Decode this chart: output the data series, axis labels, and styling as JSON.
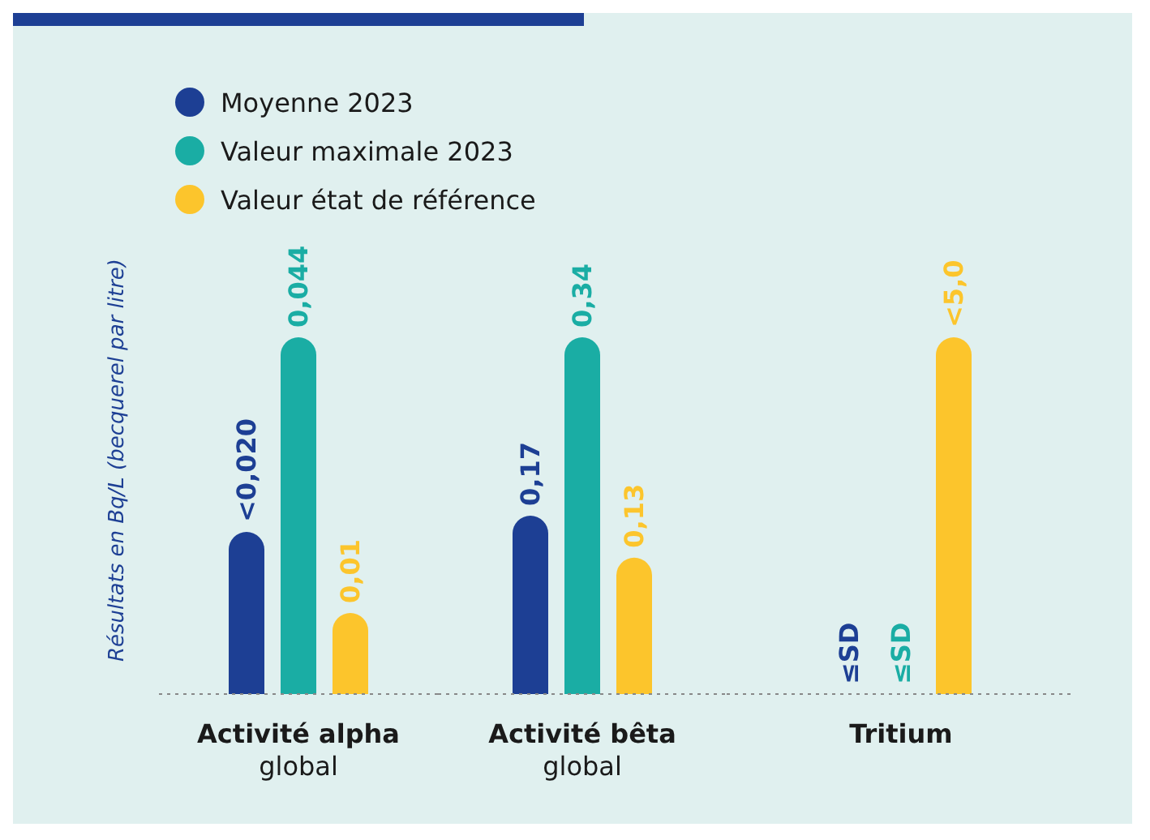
{
  "chart_data": [
    {
      "type": "bar",
      "ylabel": "Résultats en Bq/L (becquerel par litre)",
      "categories": [
        "Activité alpha\nglobal"
      ],
      "legend": "top",
      "tick_labels": "x",
      "data_labels": true,
      "series": [
        {
          "name": "Moyenne 2023",
          "color": "#1d3f94",
          "values": [
            0.02
          ],
          "value_labels": [
            "<0,020"
          ]
        },
        {
          "name": "Valeur maximale 2023",
          "color": "#1aada4",
          "values": [
            0.044
          ],
          "value_labels": [
            "0,044"
          ]
        },
        {
          "name": "Valeur état de référence",
          "color": "#fcc52c",
          "values": [
            0.01
          ],
          "value_labels": [
            "0,01"
          ]
        }
      ]
    },
    {
      "type": "bar",
      "categories": [
        "Activité bêta\nglobal"
      ],
      "tick_labels": "x",
      "data_labels": true,
      "series": [
        {
          "color": "#1d3f94",
          "values": [
            0.17
          ],
          "value_labels": [
            "0,17"
          ]
        },
        {
          "color": "#1aada4",
          "values": [
            0.34
          ],
          "value_labels": [
            "0,34"
          ]
        },
        {
          "color": "#fcc52c",
          "values": [
            0.13
          ],
          "value_labels": [
            "0,13"
          ]
        }
      ]
    },
    {
      "type": "bar",
      "categories": [
        "Tritium"
      ],
      "tick_labels": "x",
      "data_labels": true,
      "series": [
        {
          "color": "#1d3f94",
          "values": [
            null
          ],
          "value_labels": [
            "≤SD"
          ]
        },
        {
          "color": "#1aada4",
          "values": [
            null
          ],
          "value_labels": [
            "≤SD"
          ]
        },
        {
          "color": "#fcc52c",
          "values": [
            5.0
          ],
          "value_labels": [
            "<5,0"
          ]
        }
      ]
    }
  ]
}
